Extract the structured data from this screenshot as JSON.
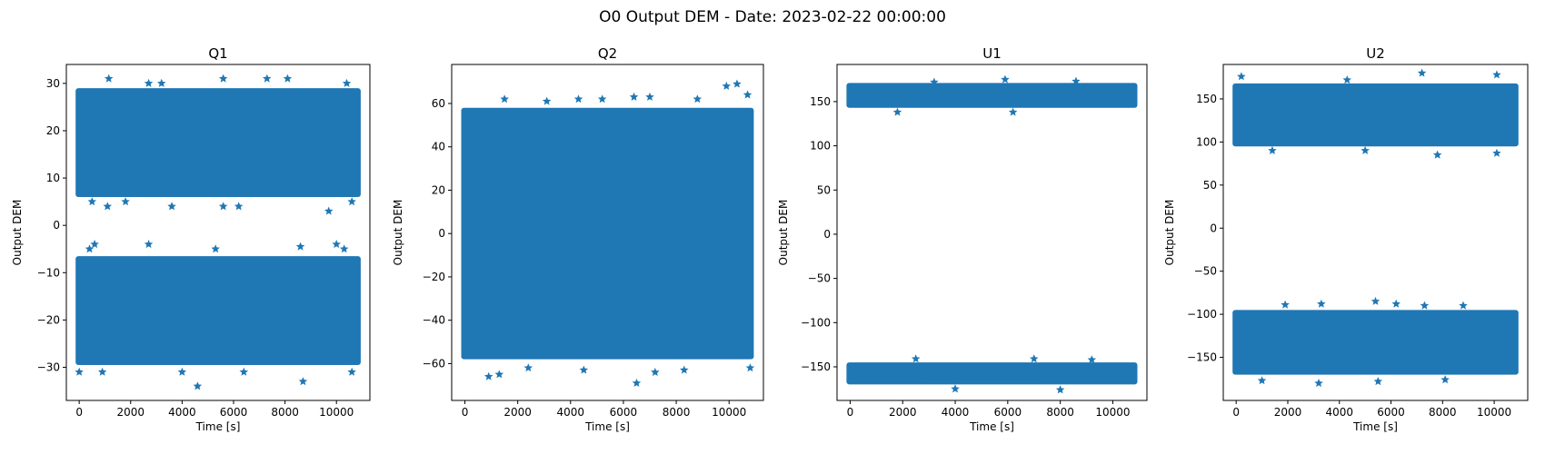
{
  "figure": {
    "suptitle": "O0 Output DEM - Date: 2023-02-22 00:00:00"
  },
  "chart_data": [
    {
      "type": "scatter",
      "title": "Q1",
      "xlabel": "Time [s]",
      "ylabel": "Output DEM",
      "xlim": [
        -500,
        11300
      ],
      "ylim": [
        -37,
        34
      ],
      "xticks": [
        0,
        2000,
        4000,
        6000,
        8000,
        10000
      ],
      "yticks": [
        -30,
        -20,
        -10,
        0,
        10,
        20,
        30
      ],
      "marker": "star",
      "color": "#1f77b4",
      "x_range": [
        0,
        10800
      ],
      "bands": [
        {
          "low": 6,
          "high": 29
        },
        {
          "low": -29.5,
          "high": -6.5
        }
      ],
      "outliers": [
        [
          1150,
          31
        ],
        [
          2700,
          30
        ],
        [
          5600,
          31
        ],
        [
          7300,
          31
        ],
        [
          8100,
          31
        ],
        [
          10400,
          30
        ],
        [
          3200,
          30
        ],
        [
          500,
          5
        ],
        [
          1100,
          4
        ],
        [
          1800,
          5
        ],
        [
          3600,
          4
        ],
        [
          5600,
          4
        ],
        [
          6200,
          4
        ],
        [
          9700,
          3
        ],
        [
          10600,
          5
        ],
        [
          400,
          -5
        ],
        [
          600,
          -4
        ],
        [
          2700,
          -4
        ],
        [
          5300,
          -5
        ],
        [
          8600,
          -4.5
        ],
        [
          10000,
          -4
        ],
        [
          10300,
          -5
        ],
        [
          0,
          -31
        ],
        [
          900,
          -31
        ],
        [
          4000,
          -31
        ],
        [
          4600,
          -34
        ],
        [
          6400,
          -31
        ],
        [
          8700,
          -33
        ],
        [
          10600,
          -31
        ]
      ]
    },
    {
      "type": "scatter",
      "title": "Q2",
      "xlabel": "Time [s]",
      "ylabel": "Output DEM",
      "xlim": [
        -500,
        11300
      ],
      "ylim": [
        -77,
        78
      ],
      "xticks": [
        0,
        2000,
        4000,
        6000,
        8000,
        10000
      ],
      "yticks": [
        -60,
        -40,
        -20,
        0,
        20,
        40,
        60
      ],
      "marker": "star",
      "color": "#1f77b4",
      "x_range": [
        0,
        10800
      ],
      "bands": [
        {
          "low": -58,
          "high": 58
        }
      ],
      "outliers": [
        [
          1500,
          62
        ],
        [
          3100,
          61
        ],
        [
          4300,
          62
        ],
        [
          5200,
          62
        ],
        [
          6400,
          63
        ],
        [
          7000,
          63
        ],
        [
          8800,
          62
        ],
        [
          9900,
          68
        ],
        [
          10300,
          69
        ],
        [
          10700,
          64
        ],
        [
          900,
          -66
        ],
        [
          1300,
          -65
        ],
        [
          2400,
          -62
        ],
        [
          4500,
          -63
        ],
        [
          6500,
          -69
        ],
        [
          7200,
          -64
        ],
        [
          8300,
          -63
        ],
        [
          10800,
          -62
        ]
      ]
    },
    {
      "type": "scatter",
      "title": "U1",
      "xlabel": "Time [s]",
      "ylabel": "Output DEM",
      "xlim": [
        -500,
        11300
      ],
      "ylim": [
        -188,
        192
      ],
      "xticks": [
        0,
        2000,
        4000,
        6000,
        8000,
        10000
      ],
      "yticks": [
        -150,
        -100,
        -50,
        0,
        50,
        100,
        150
      ],
      "marker": "star",
      "color": "#1f77b4",
      "x_range": [
        0,
        10800
      ],
      "bands": [
        {
          "low": 143,
          "high": 171
        },
        {
          "low": -170,
          "high": -145
        }
      ],
      "outliers": [
        [
          5900,
          175
        ],
        [
          3200,
          172
        ],
        [
          8600,
          173
        ],
        [
          1800,
          138
        ],
        [
          6200,
          138
        ],
        [
          2500,
          -141
        ],
        [
          7000,
          -141
        ],
        [
          9200,
          -142
        ],
        [
          4000,
          -175
        ],
        [
          8000,
          -176
        ]
      ]
    },
    {
      "type": "scatter",
      "title": "U2",
      "xlabel": "Time [s]",
      "ylabel": "Output DEM",
      "xlim": [
        -500,
        11300
      ],
      "ylim": [
        -200,
        190
      ],
      "xticks": [
        0,
        2000,
        4000,
        6000,
        8000,
        10000
      ],
      "yticks": [
        -150,
        -100,
        -50,
        0,
        50,
        100,
        150
      ],
      "marker": "star",
      "color": "#1f77b4",
      "x_range": [
        0,
        10800
      ],
      "bands": [
        {
          "low": 95,
          "high": 168
        },
        {
          "low": -170,
          "high": -95
        }
      ],
      "outliers": [
        [
          200,
          176
        ],
        [
          7200,
          180
        ],
        [
          10100,
          178
        ],
        [
          4300,
          172
        ],
        [
          7800,
          85
        ],
        [
          10100,
          87
        ],
        [
          5000,
          90
        ],
        [
          1400,
          90
        ],
        [
          5400,
          -85
        ],
        [
          3300,
          -88
        ],
        [
          1900,
          -89
        ],
        [
          7300,
          -90
        ],
        [
          8800,
          -90
        ],
        [
          6200,
          -88
        ],
        [
          3200,
          -180
        ],
        [
          5500,
          -178
        ],
        [
          8100,
          -176
        ],
        [
          1000,
          -177
        ]
      ]
    }
  ]
}
